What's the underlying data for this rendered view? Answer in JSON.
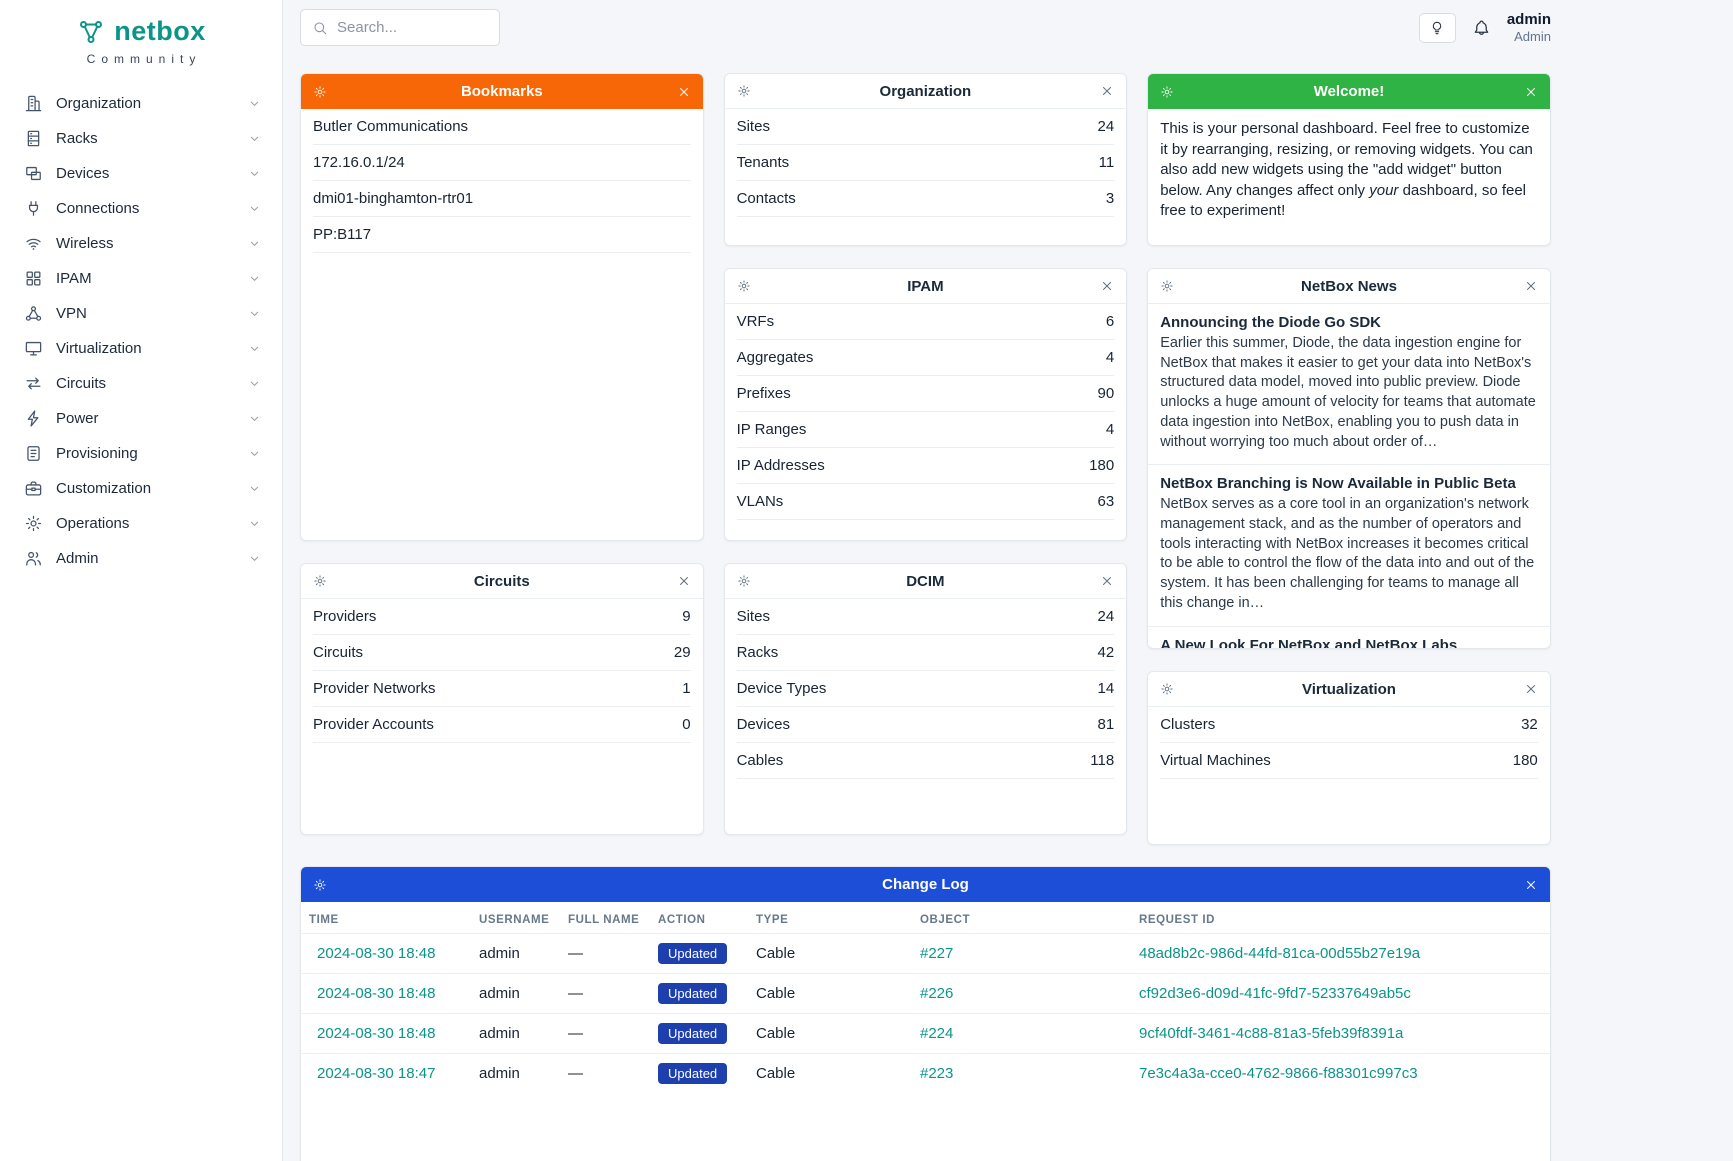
{
  "colors": {
    "brand_teal": "#0d9488",
    "header_orange": "#f76707",
    "header_green": "#2fb344",
    "header_blue": "#1d4ed8",
    "badge_blue": "#1e40af",
    "link_teal": "#0d9488"
  },
  "brand": {
    "name": "netbox",
    "tagline": "Community"
  },
  "topbar": {
    "search_placeholder": "Search...",
    "user_name": "admin",
    "user_role": "Admin"
  },
  "sidebar": [
    {
      "label": "Organization",
      "icon": "building-icon"
    },
    {
      "label": "Racks",
      "icon": "rack-icon"
    },
    {
      "label": "Devices",
      "icon": "devices-icon"
    },
    {
      "label": "Connections",
      "icon": "plug-icon"
    },
    {
      "label": "Wireless",
      "icon": "wifi-icon"
    },
    {
      "label": "IPAM",
      "icon": "grid-icon"
    },
    {
      "label": "VPN",
      "icon": "network-icon"
    },
    {
      "label": "Virtualization",
      "icon": "monitor-icon"
    },
    {
      "label": "Circuits",
      "icon": "transfer-icon"
    },
    {
      "label": "Power",
      "icon": "bolt-icon"
    },
    {
      "label": "Provisioning",
      "icon": "notes-icon"
    },
    {
      "label": "Customization",
      "icon": "toolbox-icon"
    },
    {
      "label": "Operations",
      "icon": "gears-icon"
    },
    {
      "label": "Admin",
      "icon": "users-icon"
    }
  ],
  "widgets": {
    "bookmarks": {
      "title": "Bookmarks",
      "items": [
        {
          "label": "Butler Communications"
        },
        {
          "label": "172.16.0.1/24"
        },
        {
          "label": "dmi01-binghamton-rtr01"
        },
        {
          "label": "PP:B117"
        }
      ]
    },
    "circuits": {
      "title": "Circuits",
      "rows": [
        {
          "label": "Providers",
          "value": "9"
        },
        {
          "label": "Circuits",
          "value": "29"
        },
        {
          "label": "Provider Networks",
          "value": "1"
        },
        {
          "label": "Provider Accounts",
          "value": "0"
        }
      ]
    },
    "organization": {
      "title": "Organization",
      "rows": [
        {
          "label": "Sites",
          "value": "24"
        },
        {
          "label": "Tenants",
          "value": "11"
        },
        {
          "label": "Contacts",
          "value": "3"
        }
      ]
    },
    "ipam": {
      "title": "IPAM",
      "rows": [
        {
          "label": "VRFs",
          "value": "6"
        },
        {
          "label": "Aggregates",
          "value": "4"
        },
        {
          "label": "Prefixes",
          "value": "90"
        },
        {
          "label": "IP Ranges",
          "value": "4"
        },
        {
          "label": "IP Addresses",
          "value": "180"
        },
        {
          "label": "VLANs",
          "value": "63"
        }
      ]
    },
    "dcim": {
      "title": "DCIM",
      "rows": [
        {
          "label": "Sites",
          "value": "24"
        },
        {
          "label": "Racks",
          "value": "42"
        },
        {
          "label": "Device Types",
          "value": "14"
        },
        {
          "label": "Devices",
          "value": "81"
        },
        {
          "label": "Cables",
          "value": "118"
        }
      ]
    },
    "welcome": {
      "title": "Welcome!",
      "body_p1": "This is your personal dashboard. Feel free to customize it by rearranging, resizing, or removing widgets. You can also add new widgets using the \"add widget\" button below. Any changes affect only ",
      "body_em": "your",
      "body_p2": " dashboard, so feel free to experiment!"
    },
    "news": {
      "title": "NetBox News",
      "items": [
        {
          "title": "Announcing the Diode Go SDK",
          "body": "Earlier this summer, Diode, the data ingestion engine for NetBox that makes it easier to get your data into NetBox's structured data model, moved into public preview. Diode unlocks a huge amount of velocity for teams that automate data ingestion into NetBox, enabling you to push data in without worrying too much about order of…"
        },
        {
          "title": "NetBox Branching is Now Available in Public Beta",
          "body": "NetBox serves as a core tool in an organization's network management stack, and as the number of operators and tools interacting with NetBox increases it becomes critical to be able to control the flow of the data into and out of the system. It has been challenging for teams to manage all this change in…"
        },
        {
          "title": "A New Look For NetBox and NetBox Labs",
          "body": ""
        }
      ]
    },
    "virtualization": {
      "title": "Virtualization",
      "rows": [
        {
          "label": "Clusters",
          "value": "32"
        },
        {
          "label": "Virtual Machines",
          "value": "180"
        }
      ]
    },
    "changelog": {
      "title": "Change Log",
      "columns": [
        {
          "label": "TIME"
        },
        {
          "label": "USERNAME"
        },
        {
          "label": "FULL NAME"
        },
        {
          "label": "ACTION"
        },
        {
          "label": "TYPE"
        },
        {
          "label": "OBJECT"
        },
        {
          "label": "REQUEST ID"
        }
      ],
      "rows": [
        {
          "time": "2024-08-30 18:48",
          "username": "admin",
          "full_name": "—",
          "action": "Updated",
          "type": "Cable",
          "object": "#227",
          "request_id": "48ad8b2c-986d-44fd-81ca-00d55b27e19a"
        },
        {
          "time": "2024-08-30 18:48",
          "username": "admin",
          "full_name": "—",
          "action": "Updated",
          "type": "Cable",
          "object": "#226",
          "request_id": "cf92d3e6-d09d-41fc-9fd7-52337649ab5c"
        },
        {
          "time": "2024-08-30 18:48",
          "username": "admin",
          "full_name": "—",
          "action": "Updated",
          "type": "Cable",
          "object": "#224",
          "request_id": "9cf40fdf-3461-4c88-81a3-5feb39f8391a"
        },
        {
          "time": "2024-08-30 18:47",
          "username": "admin",
          "full_name": "—",
          "action": "Updated",
          "type": "Cable",
          "object": "#223",
          "request_id": "7e3c4a3a-cce0-4762-9866-f88301c997c3"
        }
      ]
    }
  }
}
